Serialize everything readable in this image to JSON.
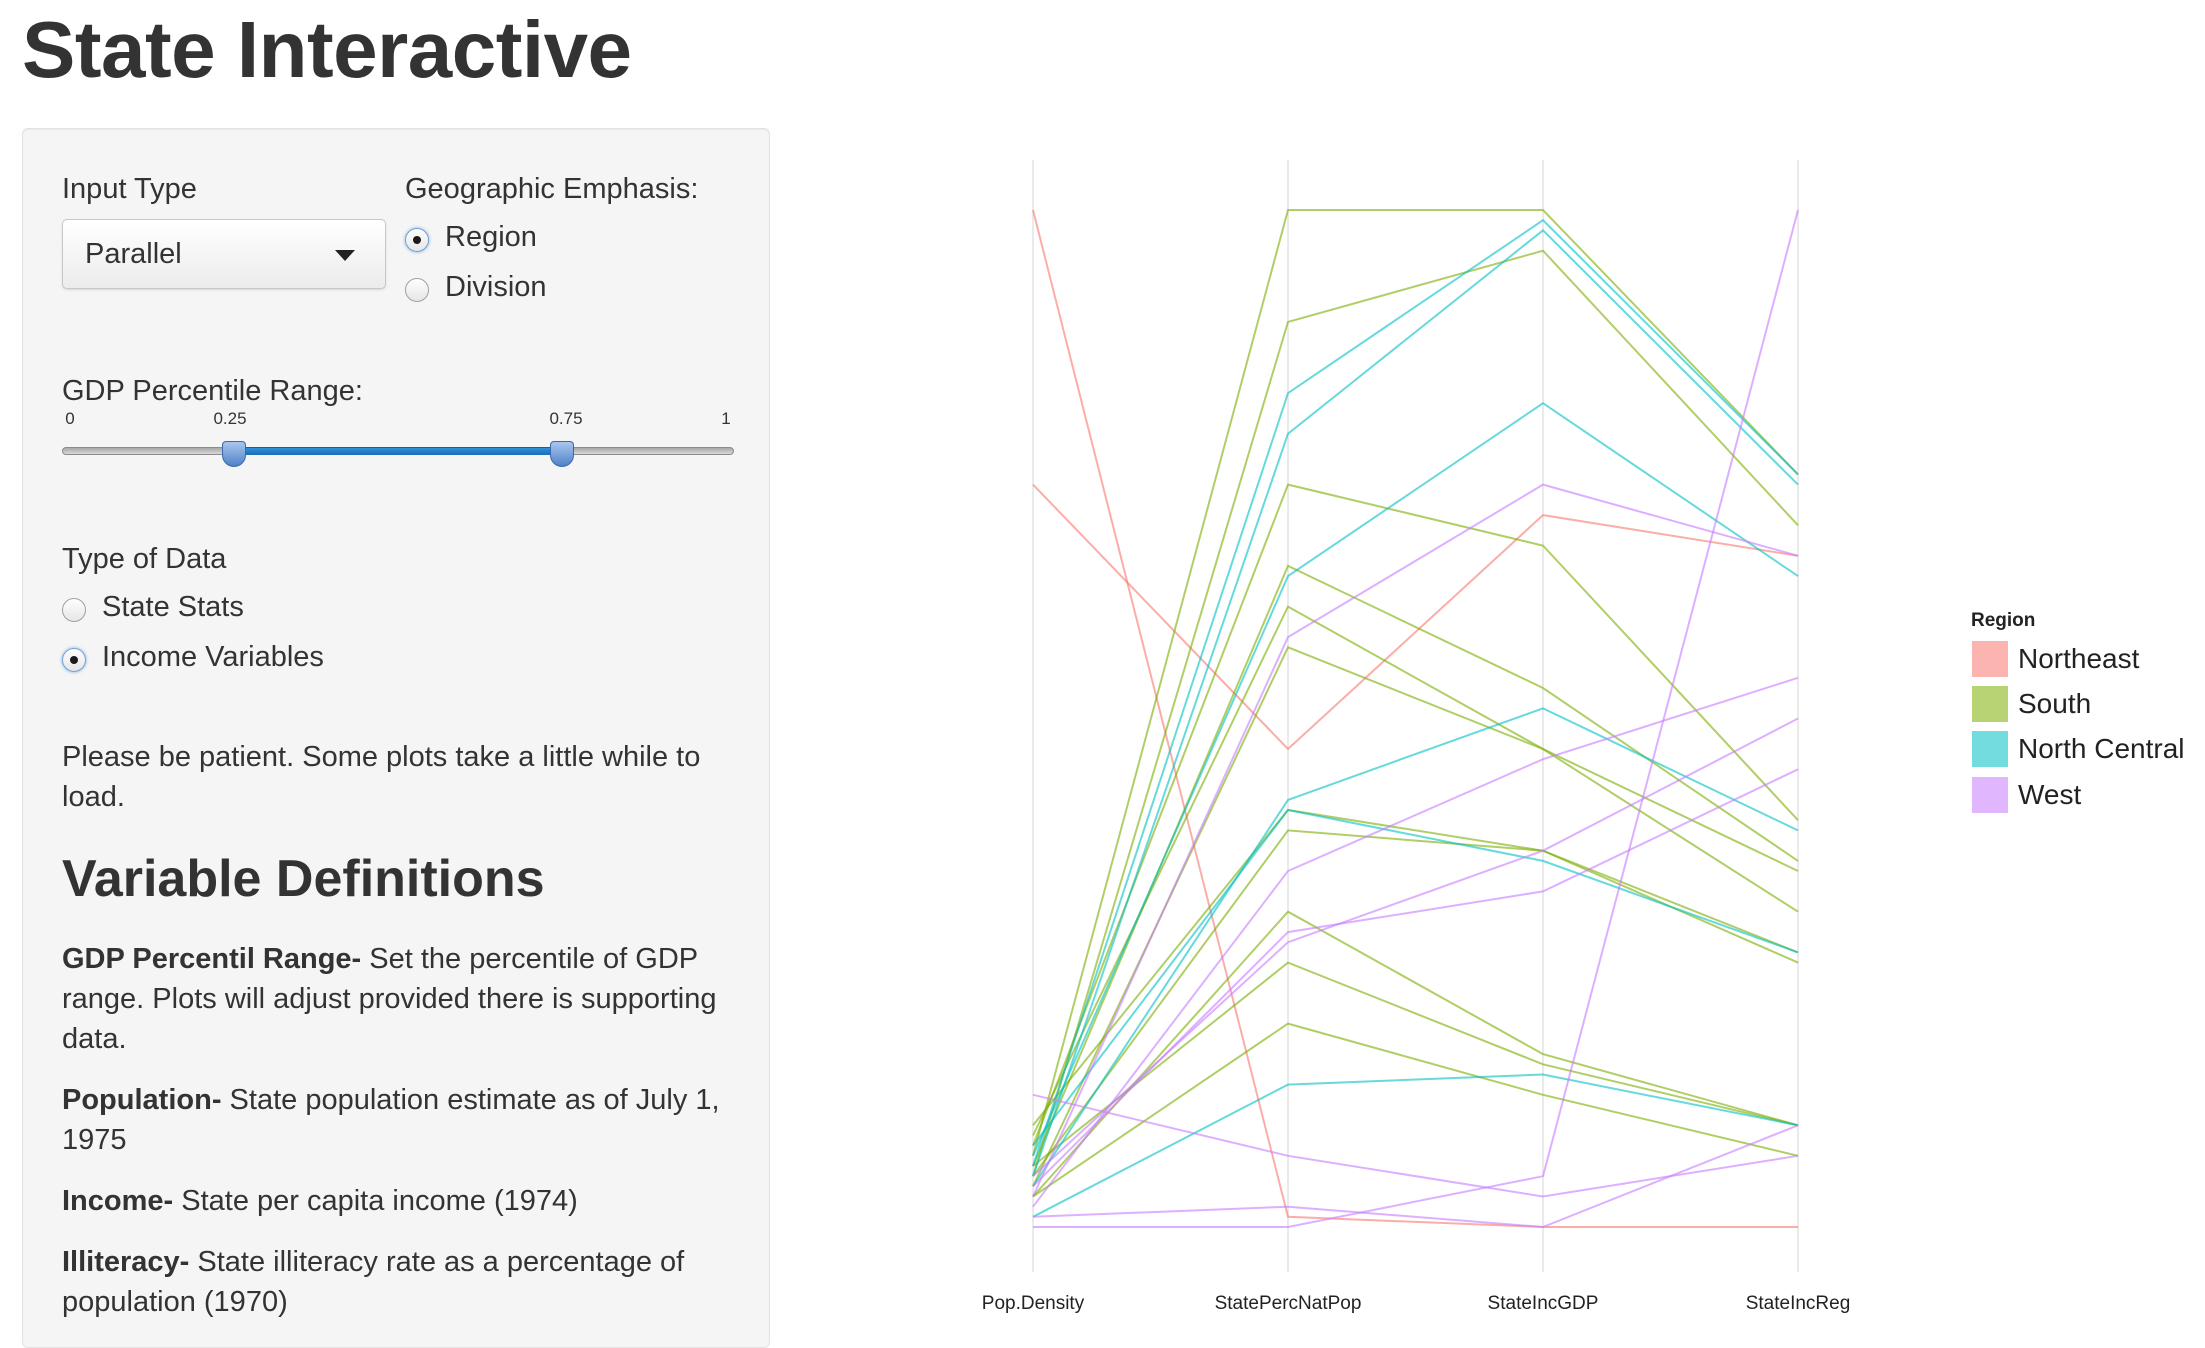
{
  "page": {
    "title": "State Interactive"
  },
  "sidebar": {
    "input_type": {
      "label": "Input Type",
      "selected": "Parallel"
    },
    "geographic_emphasis": {
      "label": "Geographic Emphasis:",
      "options": [
        {
          "label": "Region",
          "checked": true
        },
        {
          "label": "Division",
          "checked": false
        }
      ]
    },
    "gdp_range": {
      "label": "GDP Percentile Range:",
      "ticks": [
        "0",
        "0.25",
        "0.75",
        "1"
      ],
      "min": 0,
      "max": 1,
      "low": 0.25,
      "high": 0.75
    },
    "type_of_data": {
      "label": "Type of Data",
      "options": [
        {
          "label": "State Stats",
          "checked": false
        },
        {
          "label": "Income Variables",
          "checked": true
        }
      ]
    },
    "patience_note": "Please be patient. Some plots take a little while to load.",
    "definitions": {
      "title": "Variable Definitions",
      "items": [
        {
          "term": "GDP Percentil Range-",
          "text": " Set the percentile of GDP range. Plots will adjust provided there is supporting data."
        },
        {
          "term": "Population-",
          "text": " State population estimate as of July 1, 1975"
        },
        {
          "term": "Income-",
          "text": " State per capita income (1974)"
        },
        {
          "term": "Illiteracy-",
          "text": " State illiteracy rate as a percentage of population (1970)"
        }
      ]
    }
  },
  "chart_data": {
    "type": "line",
    "subtype": "parallel-coordinates",
    "axes": [
      "Pop.Density",
      "StatePercNatPop",
      "StateIncGDP",
      "StateIncReg"
    ],
    "ylim": [
      0,
      1
    ],
    "grid": true,
    "legend": {
      "title": "Region",
      "position": "right",
      "entries": [
        {
          "name": "Northeast",
          "color": "#F8766D"
        },
        {
          "name": "South",
          "color": "#7CAE00"
        },
        {
          "name": "North Central",
          "color": "#00BFC4"
        },
        {
          "name": "West",
          "color": "#C77CFF"
        }
      ]
    },
    "series": [
      {
        "name": "Northeast",
        "values": [
          1.0,
          0.01,
          0.0,
          0.0
        ]
      },
      {
        "name": "Northeast",
        "values": [
          0.73,
          0.47,
          0.7,
          0.66
        ]
      },
      {
        "name": "South",
        "values": [
          0.07,
          1.0,
          1.0,
          0.74
        ]
      },
      {
        "name": "South",
        "values": [
          0.05,
          0.89,
          0.96,
          0.69
        ]
      },
      {
        "name": "South",
        "values": [
          0.08,
          0.73,
          0.67,
          0.4
        ]
      },
      {
        "name": "South",
        "values": [
          0.06,
          0.65,
          0.53,
          0.36
        ]
      },
      {
        "name": "South",
        "values": [
          0.09,
          0.61,
          0.47,
          0.35
        ]
      },
      {
        "name": "South",
        "values": [
          0.04,
          0.57,
          0.47,
          0.31
        ]
      },
      {
        "name": "South",
        "values": [
          0.1,
          0.41,
          0.37,
          0.27
        ]
      },
      {
        "name": "South",
        "values": [
          0.05,
          0.39,
          0.37,
          0.26
        ]
      },
      {
        "name": "South",
        "values": [
          0.03,
          0.31,
          0.17,
          0.1
        ]
      },
      {
        "name": "South",
        "values": [
          0.06,
          0.26,
          0.16,
          0.1
        ]
      },
      {
        "name": "South",
        "values": [
          0.03,
          0.2,
          0.13,
          0.07
        ]
      },
      {
        "name": "North Central",
        "values": [
          0.06,
          0.82,
          0.99,
          0.74
        ]
      },
      {
        "name": "North Central",
        "values": [
          0.05,
          0.78,
          0.98,
          0.73
        ]
      },
      {
        "name": "North Central",
        "values": [
          0.07,
          0.64,
          0.81,
          0.64
        ]
      },
      {
        "name": "North Central",
        "values": [
          0.04,
          0.42,
          0.51,
          0.39
        ]
      },
      {
        "name": "North Central",
        "values": [
          0.08,
          0.41,
          0.36,
          0.27
        ]
      },
      {
        "name": "North Central",
        "values": [
          0.01,
          0.14,
          0.15,
          0.1
        ]
      },
      {
        "name": "West",
        "values": [
          0.0,
          0.0,
          0.05,
          1.0
        ]
      },
      {
        "name": "West",
        "values": [
          0.03,
          0.58,
          0.73,
          0.66
        ]
      },
      {
        "name": "West",
        "values": [
          0.02,
          0.35,
          0.46,
          0.54
        ]
      },
      {
        "name": "West",
        "values": [
          0.04,
          0.29,
          0.33,
          0.45
        ]
      },
      {
        "name": "West",
        "values": [
          0.05,
          0.28,
          0.37,
          0.5
        ]
      },
      {
        "name": "West",
        "values": [
          0.13,
          0.07,
          0.03,
          0.07
        ]
      },
      {
        "name": "West",
        "values": [
          0.01,
          0.02,
          0.0,
          0.1
        ]
      }
    ]
  }
}
